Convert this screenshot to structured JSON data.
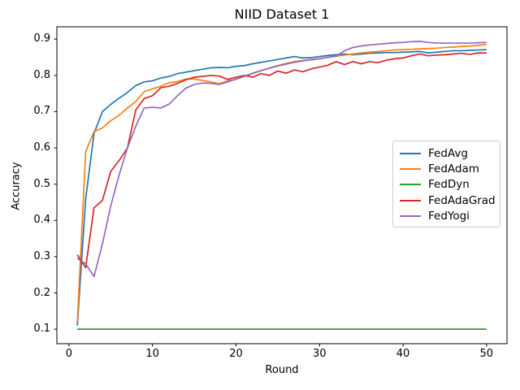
{
  "figure": {
    "background": "#ffffff",
    "spine_color": "#000000",
    "legend_border_color": "#cccccc"
  },
  "chart_data": {
    "type": "line",
    "title": "NIID Dataset 1",
    "xlabel": "Round",
    "ylabel": "Accuracy",
    "grid": false,
    "legend_position": "center-right",
    "xlim": [
      -1.45,
      52.45
    ],
    "ylim": [
      0.06,
      0.934
    ],
    "x_ticks": [
      0,
      10,
      20,
      30,
      40,
      50
    ],
    "y_ticks": [
      0.1,
      0.2,
      0.3,
      0.4,
      0.5,
      0.6,
      0.7,
      0.8,
      0.9
    ],
    "x": [
      1,
      2,
      3,
      4,
      5,
      6,
      7,
      8,
      9,
      10,
      11,
      12,
      13,
      14,
      15,
      16,
      17,
      18,
      19,
      20,
      21,
      22,
      23,
      24,
      25,
      26,
      27,
      28,
      29,
      30,
      31,
      32,
      33,
      34,
      35,
      36,
      37,
      38,
      39,
      40,
      41,
      42,
      43,
      44,
      45,
      46,
      47,
      48,
      49,
      50
    ],
    "series": [
      {
        "name": "FedAvg",
        "color": "#1f77b4",
        "values": [
          0.11,
          0.46,
          0.64,
          0.7,
          0.72,
          0.737,
          0.753,
          0.772,
          0.782,
          0.785,
          0.793,
          0.797,
          0.805,
          0.809,
          0.813,
          0.817,
          0.821,
          0.822,
          0.821,
          0.825,
          0.827,
          0.832,
          0.836,
          0.84,
          0.844,
          0.848,
          0.852,
          0.848,
          0.849,
          0.852,
          0.855,
          0.857,
          0.859,
          0.857,
          0.859,
          0.861,
          0.862,
          0.863,
          0.863,
          0.864,
          0.865,
          0.866,
          0.862,
          0.864,
          0.866,
          0.868,
          0.868,
          0.869,
          0.87,
          0.871
        ]
      },
      {
        "name": "FedAdam",
        "color": "#ff7f0e",
        "values": [
          0.12,
          0.59,
          0.645,
          0.655,
          0.675,
          0.69,
          0.71,
          0.728,
          0.755,
          0.763,
          0.77,
          0.78,
          0.783,
          0.79,
          0.79,
          0.786,
          0.782,
          0.777,
          0.785,
          0.789,
          0.797,
          0.805,
          0.813,
          0.82,
          0.827,
          0.833,
          0.838,
          0.841,
          0.844,
          0.846,
          0.85,
          0.853,
          0.856,
          0.859,
          0.862,
          0.864,
          0.866,
          0.868,
          0.87,
          0.871,
          0.872,
          0.873,
          0.874,
          0.875,
          0.877,
          0.878,
          0.88,
          0.881,
          0.883,
          0.885
        ]
      },
      {
        "name": "FedDyn",
        "color": "#2ca02c",
        "values": [
          0.1,
          0.1,
          0.1,
          0.1,
          0.1,
          0.1,
          0.1,
          0.1,
          0.1,
          0.1,
          0.1,
          0.1,
          0.1,
          0.1,
          0.1,
          0.1,
          0.1,
          0.1,
          0.1,
          0.1,
          0.1,
          0.1,
          0.1,
          0.1,
          0.1,
          0.1,
          0.1,
          0.1,
          0.1,
          0.1,
          0.1,
          0.1,
          0.1,
          0.1,
          0.1,
          0.1,
          0.1,
          0.1,
          0.1,
          0.1,
          0.1,
          0.1,
          0.1,
          0.1,
          0.1,
          0.1,
          0.1,
          0.1,
          0.1,
          0.1
        ]
      },
      {
        "name": "FedAdaGrad",
        "color": "#d62728",
        "values": [
          0.305,
          0.27,
          0.435,
          0.455,
          0.535,
          0.565,
          0.6,
          0.705,
          0.736,
          0.744,
          0.766,
          0.77,
          0.778,
          0.788,
          0.795,
          0.797,
          0.8,
          0.798,
          0.789,
          0.795,
          0.8,
          0.795,
          0.805,
          0.8,
          0.812,
          0.806,
          0.815,
          0.81,
          0.818,
          0.823,
          0.828,
          0.838,
          0.83,
          0.838,
          0.832,
          0.838,
          0.835,
          0.842,
          0.846,
          0.848,
          0.854,
          0.859,
          0.854,
          0.856,
          0.857,
          0.859,
          0.861,
          0.858,
          0.862,
          0.862
        ]
      },
      {
        "name": "FedYogi",
        "color": "#9467bd",
        "values": [
          0.295,
          0.28,
          0.245,
          0.335,
          0.44,
          0.525,
          0.6,
          0.66,
          0.71,
          0.712,
          0.71,
          0.721,
          0.744,
          0.765,
          0.775,
          0.779,
          0.778,
          0.775,
          0.782,
          0.79,
          0.798,
          0.806,
          0.813,
          0.82,
          0.826,
          0.831,
          0.836,
          0.84,
          0.843,
          0.846,
          0.85,
          0.853,
          0.868,
          0.877,
          0.881,
          0.884,
          0.886,
          0.888,
          0.89,
          0.891,
          0.893,
          0.894,
          0.891,
          0.889,
          0.889,
          0.889,
          0.889,
          0.889,
          0.89,
          0.891
        ]
      }
    ]
  }
}
